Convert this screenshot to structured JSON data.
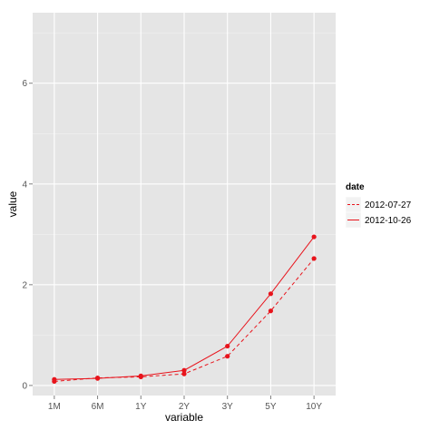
{
  "chart_data": {
    "type": "line",
    "xlabel": "variable",
    "ylabel": "value",
    "categories": [
      "1M",
      "6M",
      "1Y",
      "2Y",
      "3Y",
      "5Y",
      "10Y"
    ],
    "ylim": [
      -0.2,
      7.4
    ],
    "yticks": [
      0,
      2,
      4,
      6
    ],
    "grid": true,
    "legend_position": "right",
    "legend_title": "date",
    "series": [
      {
        "name": "2012-07-27",
        "values": [
          0.08,
          0.15,
          0.17,
          0.23,
          0.58,
          1.48,
          2.52
        ],
        "color": "#e8141c",
        "dash": true
      },
      {
        "name": "2012-10-26",
        "values": [
          0.12,
          0.14,
          0.19,
          0.3,
          0.78,
          1.82,
          2.95
        ],
        "color": "#e8141c",
        "dash": false
      }
    ]
  }
}
